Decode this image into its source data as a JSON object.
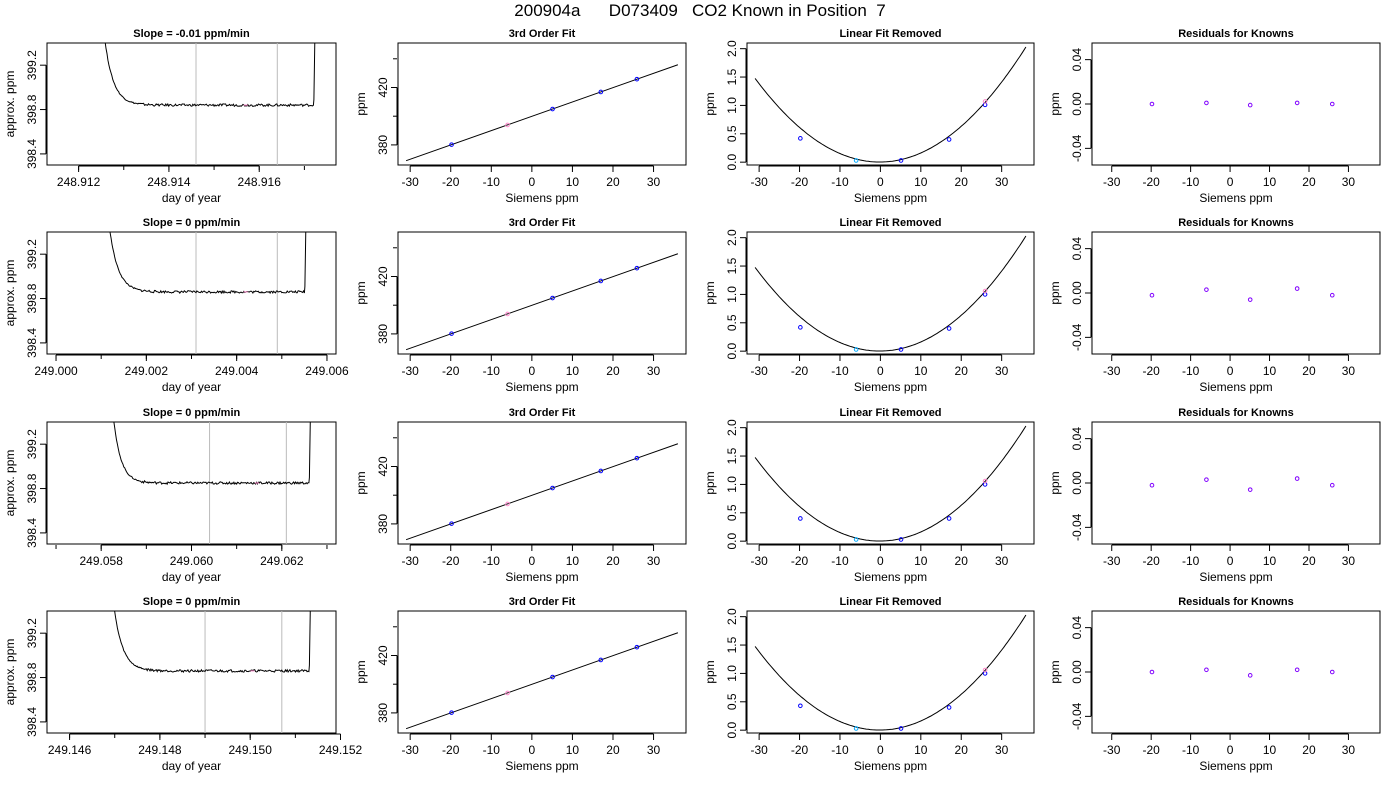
{
  "page_title": "200904a      D073409   CO2 Known in Position  7",
  "colors": {
    "trace": "#000000",
    "vline": "#bbbbbb",
    "marker_blue": "#0000ff",
    "marker_cyan": "#00aaff",
    "marker_pink": "#ff88cc",
    "marker_purple": "#8000ff"
  },
  "chart_data": [
    {
      "type": "line",
      "panel": "drift",
      "row": 1,
      "title": "Slope =  -0.01  ppm/min",
      "xlabel": "day of year",
      "ylabel": "approx. ppm",
      "xlim": [
        248.9113,
        248.9177
      ],
      "ylim": [
        398.3,
        399.4
      ],
      "xticks": [
        "248.912",
        "248.914",
        "248.916"
      ],
      "yticks": [
        "398.4",
        "398.8",
        "399.2"
      ],
      "vlines": [
        248.9146,
        248.9164
      ],
      "plateau": 398.84,
      "trace_start": 248.9125,
      "settle": 248.9133,
      "trace_end": 248.9172
    },
    {
      "type": "line",
      "panel": "fit",
      "row": 1,
      "title": "3rd Order Fit",
      "xlabel": "Siemens ppm",
      "ylabel": "ppm",
      "xlim": [
        -33,
        38
      ],
      "ylim": [
        366,
        451
      ],
      "xticks": [
        "-30",
        "-20",
        "-10",
        "0",
        "10",
        "20",
        "30"
      ],
      "yticks": [
        "380",
        "420"
      ],
      "x": [
        -19.8,
        -6.0,
        5.1,
        17.0,
        25.9
      ],
      "y": [
        380.2,
        393.9,
        405.0,
        416.9,
        425.8
      ]
    },
    {
      "type": "scatter",
      "panel": "curve",
      "row": 1,
      "title": "Linear Fit Removed",
      "xlabel": "Siemens ppm",
      "ylabel": "ppm",
      "xlim": [
        -33,
        38
      ],
      "ylim": [
        -0.05,
        2.1
      ],
      "xticks": [
        "-30",
        "-20",
        "-10",
        "0",
        "10",
        "20",
        "30"
      ],
      "yticks": [
        "0.0",
        "0.5",
        "1.0",
        "1.5",
        "2.0"
      ],
      "x": [
        -19.8,
        -6.0,
        5.1,
        17.0,
        25.9
      ],
      "y": [
        0.42,
        0.03,
        0.03,
        0.4,
        1.01
      ]
    },
    {
      "type": "scatter",
      "panel": "residuals",
      "row": 1,
      "title": "Residuals for Knowns",
      "xlabel": "Siemens ppm",
      "ylabel": "ppm",
      "xlim": [
        -35,
        38
      ],
      "ylim": [
        -0.055,
        0.055
      ],
      "xticks": [
        "-30",
        "-20",
        "-10",
        "0",
        "10",
        "20",
        "30"
      ],
      "yticks": [
        "-0.04",
        "0.00",
        "0.04"
      ],
      "x": [
        -19.8,
        -6.0,
        5.1,
        17.0,
        25.9
      ],
      "y": [
        0.0,
        0.001,
        -0.001,
        0.001,
        0.0
      ]
    },
    {
      "type": "line",
      "panel": "drift",
      "row": 2,
      "title": "Slope =  0  ppm/min",
      "xlabel": "day of year",
      "ylabel": "approx. ppm",
      "xlim": [
        248.9998,
        249.0062
      ],
      "ylim": [
        398.3,
        399.4
      ],
      "xticks": [
        "249.000",
        "249.002",
        "249.004",
        "249.006"
      ],
      "yticks": [
        "398.4",
        "398.8",
        "399.2"
      ],
      "vlines": [
        249.0031,
        249.0049
      ],
      "plateau": 398.86,
      "trace_start": 249.0011,
      "settle": 249.0019,
      "trace_end": 249.0055
    },
    {
      "type": "line",
      "panel": "fit",
      "row": 2,
      "title": "3rd Order Fit",
      "xlabel": "Siemens ppm",
      "ylabel": "ppm",
      "xlim": [
        -33,
        38
      ],
      "ylim": [
        366,
        451
      ],
      "xticks": [
        "-30",
        "-20",
        "-10",
        "0",
        "10",
        "20",
        "30"
      ],
      "yticks": [
        "380",
        "420"
      ],
      "x": [
        -19.8,
        -6.0,
        5.1,
        17.0,
        25.9
      ],
      "y": [
        380.2,
        393.9,
        405.0,
        416.9,
        425.8
      ]
    },
    {
      "type": "scatter",
      "panel": "curve",
      "row": 2,
      "title": "Linear Fit Removed",
      "xlabel": "Siemens ppm",
      "ylabel": "ppm",
      "xlim": [
        -33,
        38
      ],
      "ylim": [
        -0.05,
        2.1
      ],
      "xticks": [
        "-30",
        "-20",
        "-10",
        "0",
        "10",
        "20",
        "30"
      ],
      "yticks": [
        "0.0",
        "0.5",
        "1.0",
        "1.5",
        "2.0"
      ],
      "x": [
        -19.8,
        -6.0,
        5.1,
        17.0,
        25.9
      ],
      "y": [
        0.42,
        0.03,
        0.03,
        0.4,
        1.0
      ]
    },
    {
      "type": "scatter",
      "panel": "residuals",
      "row": 2,
      "title": "Residuals for Knowns",
      "xlabel": "Siemens ppm",
      "ylabel": "ppm",
      "xlim": [
        -35,
        38
      ],
      "ylim": [
        -0.055,
        0.055
      ],
      "xticks": [
        "-30",
        "-20",
        "-10",
        "0",
        "10",
        "20",
        "30"
      ],
      "yticks": [
        "-0.04",
        "0.00",
        "0.04"
      ],
      "x": [
        -19.8,
        -6.0,
        5.1,
        17.0,
        25.9
      ],
      "y": [
        -0.002,
        0.003,
        -0.006,
        0.004,
        -0.002
      ]
    },
    {
      "type": "line",
      "panel": "drift",
      "row": 3,
      "title": "Slope =  0  ppm/min",
      "xlabel": "day of year",
      "ylabel": "approx. ppm",
      "xlim": [
        249.0568,
        249.0632
      ],
      "ylim": [
        398.3,
        399.4
      ],
      "xticks": [
        "249.058",
        "249.060",
        "249.062"
      ],
      "yticks": [
        "398.4",
        "398.8",
        "399.2"
      ],
      "vlines": [
        249.0604,
        249.0621
      ],
      "plateau": 398.85,
      "trace_start": 249.0582,
      "settle": 249.0589,
      "trace_end": 249.0626
    },
    {
      "type": "line",
      "panel": "fit",
      "row": 3,
      "title": "3rd Order Fit",
      "xlabel": "Siemens ppm",
      "ylabel": "ppm",
      "xlim": [
        -33,
        38
      ],
      "ylim": [
        366,
        451
      ],
      "xticks": [
        "-30",
        "-20",
        "-10",
        "0",
        "10",
        "20",
        "30"
      ],
      "yticks": [
        "380",
        "420"
      ],
      "x": [
        -19.8,
        -6.0,
        5.1,
        17.0,
        25.9
      ],
      "y": [
        380.2,
        393.9,
        405.0,
        416.9,
        425.8
      ]
    },
    {
      "type": "scatter",
      "panel": "curve",
      "row": 3,
      "title": "Linear Fit Removed",
      "xlabel": "Siemens ppm",
      "ylabel": "ppm",
      "xlim": [
        -33,
        38
      ],
      "ylim": [
        -0.05,
        2.1
      ],
      "xticks": [
        "-30",
        "-20",
        "-10",
        "0",
        "10",
        "20",
        "30"
      ],
      "yticks": [
        "0.0",
        "0.5",
        "1.0",
        "1.5",
        "2.0"
      ],
      "x": [
        -19.8,
        -6.0,
        5.1,
        17.0,
        25.9
      ],
      "y": [
        0.4,
        0.03,
        0.03,
        0.4,
        1.0
      ]
    },
    {
      "type": "scatter",
      "panel": "residuals",
      "row": 3,
      "title": "Residuals for Knowns",
      "xlabel": "Siemens ppm",
      "ylabel": "ppm",
      "xlim": [
        -35,
        38
      ],
      "ylim": [
        -0.055,
        0.055
      ],
      "xticks": [
        "-30",
        "-20",
        "-10",
        "0",
        "10",
        "20",
        "30"
      ],
      "yticks": [
        "-0.04",
        "0.00",
        "0.04"
      ],
      "x": [
        -19.8,
        -6.0,
        5.1,
        17.0,
        25.9
      ],
      "y": [
        -0.002,
        0.003,
        -0.006,
        0.004,
        -0.002
      ]
    },
    {
      "type": "line",
      "panel": "drift",
      "row": 4,
      "title": "Slope =  0  ppm/min",
      "xlabel": "day of year",
      "ylabel": "approx. ppm",
      "xlim": [
        249.1455,
        249.1519
      ],
      "ylim": [
        398.3,
        399.4
      ],
      "xticks": [
        "249.146",
        "249.148",
        "249.150",
        "249.152"
      ],
      "yticks": [
        "398.4",
        "398.8",
        "399.2"
      ],
      "vlines": [
        249.149,
        249.1507
      ],
      "plateau": 398.86,
      "trace_start": 249.1469,
      "settle": 249.1477,
      "trace_end": 249.1513
    },
    {
      "type": "line",
      "panel": "fit",
      "row": 4,
      "title": "3rd Order Fit",
      "xlabel": "Siemens ppm",
      "ylabel": "ppm",
      "xlim": [
        -33,
        38
      ],
      "ylim": [
        366,
        451
      ],
      "xticks": [
        "-30",
        "-20",
        "-10",
        "0",
        "10",
        "20",
        "30"
      ],
      "yticks": [
        "380",
        "420"
      ],
      "x": [
        -19.8,
        -6.0,
        5.1,
        17.0,
        25.9
      ],
      "y": [
        380.2,
        393.9,
        405.0,
        416.9,
        425.8
      ]
    },
    {
      "type": "scatter",
      "panel": "curve",
      "row": 4,
      "title": "Linear Fit Removed",
      "xlabel": "Siemens ppm",
      "ylabel": "ppm",
      "xlim": [
        -33,
        38
      ],
      "ylim": [
        -0.05,
        2.1
      ],
      "xticks": [
        "-30",
        "-20",
        "-10",
        "0",
        "10",
        "20",
        "30"
      ],
      "yticks": [
        "0.0",
        "0.5",
        "1.0",
        "1.5",
        "2.0"
      ],
      "x": [
        -19.8,
        -6.0,
        5.1,
        17.0,
        25.9
      ],
      "y": [
        0.43,
        0.03,
        0.03,
        0.4,
        1.0
      ]
    },
    {
      "type": "scatter",
      "panel": "residuals",
      "row": 4,
      "title": "Residuals for Knowns",
      "xlabel": "Siemens ppm",
      "ylabel": "ppm",
      "xlim": [
        -35,
        38
      ],
      "ylim": [
        -0.055,
        0.055
      ],
      "xticks": [
        "-30",
        "-20",
        "-10",
        "0",
        "10",
        "20",
        "30"
      ],
      "yticks": [
        "-0.04",
        "0.00",
        "0.04"
      ],
      "x": [
        -19.8,
        -6.0,
        5.1,
        17.0,
        25.9
      ],
      "y": [
        0.0,
        0.002,
        -0.003,
        0.002,
        0.0
      ]
    }
  ]
}
